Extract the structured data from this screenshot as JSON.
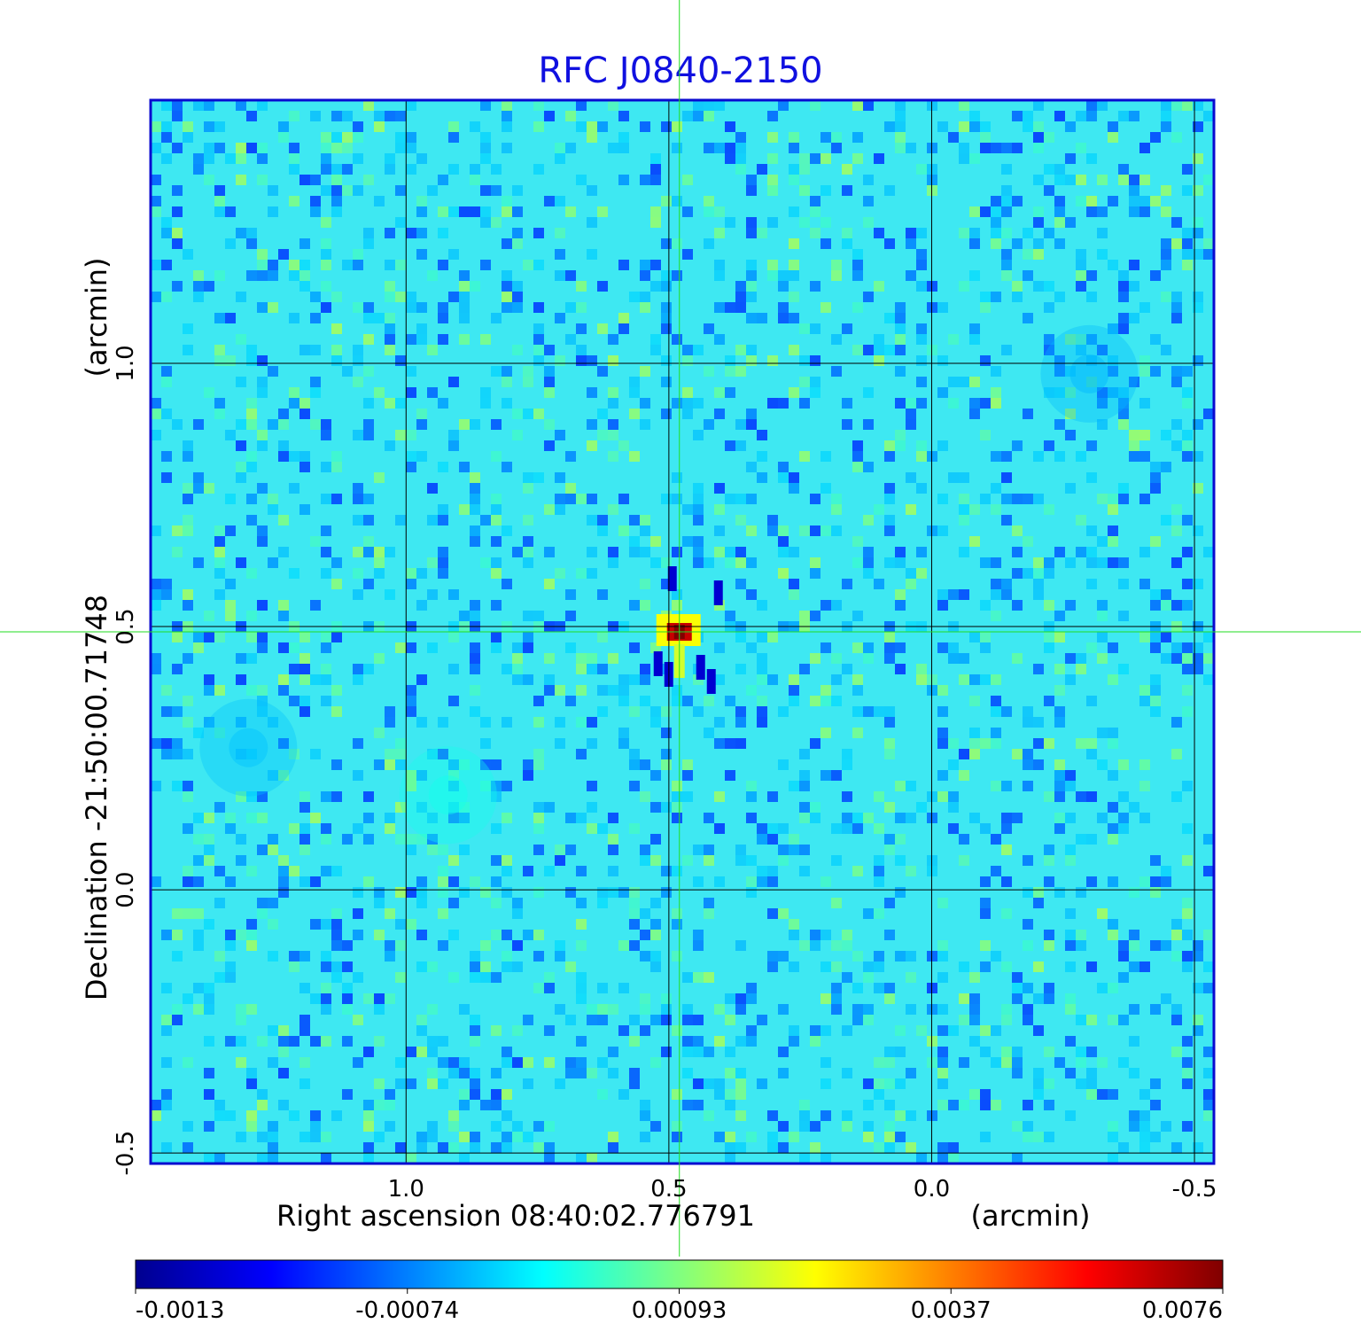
{
  "chart_data": {
    "type": "heatmap",
    "title": "RFC J0840-2150",
    "xlabel": "Right ascension  08:40:02.776791",
    "xunit": "(arcmin)",
    "ylabel": "Declination  -21:50:00.71748",
    "yunit": "(arcmin)",
    "x_ticks": [
      {
        "value": 1.0,
        "label": "1.0"
      },
      {
        "value": 0.5,
        "label": "0.5"
      },
      {
        "value": 0.0,
        "label": "0.0"
      },
      {
        "value": -0.5,
        "label": "-0.5"
      }
    ],
    "y_ticks": [
      {
        "value": 1.0,
        "label": "1.0"
      },
      {
        "value": 0.5,
        "label": "0.5"
      },
      {
        "value": 0.0,
        "label": "0.0"
      },
      {
        "value": -0.5,
        "label": "-0.5"
      }
    ],
    "xlim": [
      1.486,
      -0.537
    ],
    "ylim": [
      -0.52,
      1.5
    ],
    "grid": true,
    "crosshair": {
      "x": 0.48,
      "y": 0.49
    },
    "colorbar": {
      "min": -0.0013,
      "max": 0.0076,
      "tick_values": [
        -0.0013,
        -0.00074,
        0.00093,
        0.0037,
        0.0076
      ],
      "tick_labels": [
        "-0.0013",
        "-0.00074",
        "0.00093",
        "0.0037",
        "0.0076"
      ]
    },
    "colormap": "jet",
    "features": [
      {
        "kind": "peak",
        "x": 0.48,
        "y": 0.49,
        "value": 0.0076
      },
      {
        "kind": "diffuse",
        "x": 0.92,
        "y": 0.18,
        "value": 0.0022
      },
      {
        "kind": "diffuse",
        "x": 1.3,
        "y": 0.27,
        "value": 0.0015
      },
      {
        "kind": "diffuse",
        "x": -0.3,
        "y": 0.98,
        "value": 0.0014
      }
    ],
    "colors": {
      "title": "#1010e0",
      "frame": "#0a0ad0",
      "grid": "#000000",
      "crosshair": "#22dd22",
      "text": "#000000"
    }
  }
}
